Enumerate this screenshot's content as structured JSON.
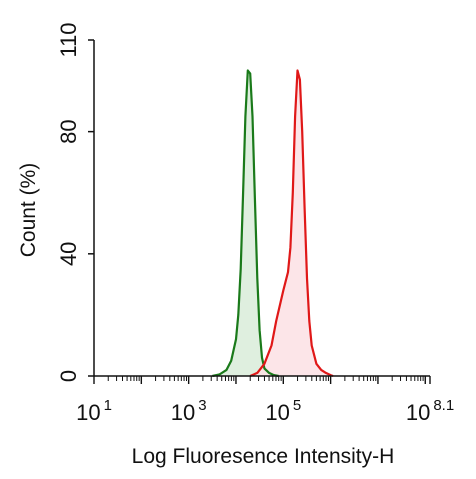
{
  "chart_data": {
    "type": "area",
    "xlabel": "Log Fluoresence Intensity-H",
    "ylabel": "Count  (%)",
    "x_scale": "log10",
    "xlim": [
      1,
      8.1
    ],
    "ylim": [
      0,
      110
    ],
    "x_ticks": [
      {
        "base": "10",
        "exp": "1",
        "value": 1
      },
      {
        "base": "10",
        "exp": "3",
        "value": 3
      },
      {
        "base": "10",
        "exp": "5",
        "value": 5
      },
      {
        "base": "10",
        "exp": "8.1",
        "value": 8.1
      }
    ],
    "y_ticks": [
      0,
      40,
      80,
      110
    ],
    "grid": false,
    "legend": "none",
    "series": [
      {
        "color": "#1a7a1a",
        "fill": "#d9ecd9",
        "x": [
          3.5,
          3.65,
          3.8,
          3.9,
          4.0,
          4.05,
          4.1,
          4.15,
          4.2,
          4.25,
          4.3,
          4.35,
          4.4,
          4.45,
          4.5,
          4.55,
          4.6,
          4.7,
          4.8,
          4.9
        ],
        "y": [
          0,
          0.5,
          2,
          5,
          12,
          20,
          35,
          60,
          85,
          100,
          99,
          85,
          58,
          32,
          15,
          6,
          2.5,
          1,
          0.3,
          0
        ]
      },
      {
        "color": "#e01818",
        "fill": "#fbe1e4",
        "x": [
          4.3,
          4.45,
          4.6,
          4.75,
          4.85,
          5.0,
          5.1,
          5.15,
          5.2,
          5.25,
          5.3,
          5.35,
          5.4,
          5.45,
          5.5,
          5.55,
          5.6,
          5.7,
          5.8,
          5.9,
          6.0,
          6.05
        ],
        "y": [
          0,
          1,
          4,
          10,
          18,
          28,
          34,
          42,
          60,
          85,
          100,
          97,
          80,
          55,
          32,
          18,
          10,
          4,
          2,
          1,
          0.3,
          0
        ]
      }
    ]
  }
}
